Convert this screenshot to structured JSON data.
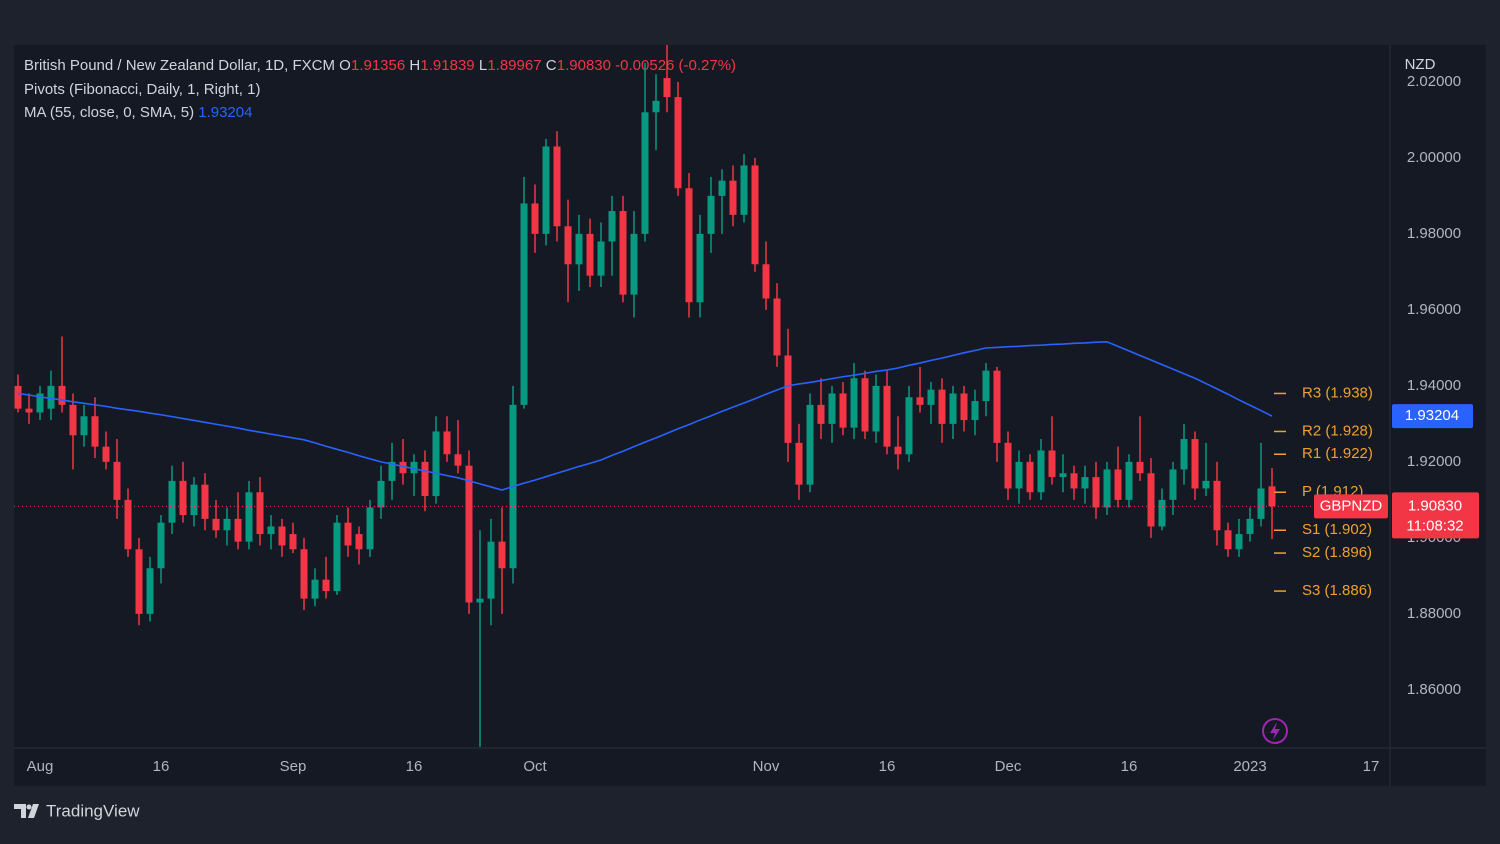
{
  "chart_data": {
    "type": "candlestick",
    "header": {
      "fields": [
        {
          "key": "O",
          "value": "1.91356"
        },
        {
          "key": "H",
          "value": "1.91839"
        },
        {
          "key": "L",
          "value": "1.89967"
        },
        {
          "key": "C",
          "value": "1.90830"
        }
      ],
      "change": "-0.00526 (-0.27%)"
    },
    "pivots_title": "Pivots (Fibonacci, Daily, 1, Right, 1)",
    "y_axis_label": "NZD",
    "symbol": "GBPNZD",
    "countdown": "11:08:32",
    "brand": "TradingView",
    "ylim": [
      1.8447,
      2.0297
    ],
    "yticks": [
      {
        "value": 1.86,
        "label": "1.86000"
      },
      {
        "value": 1.88,
        "label": "1.88000"
      },
      {
        "value": 1.9,
        "label": "1.90000"
      },
      {
        "value": 1.92,
        "label": "1.92000"
      },
      {
        "value": 1.94,
        "label": "1.94000"
      },
      {
        "value": 1.96,
        "label": "1.96000"
      },
      {
        "value": 1.98,
        "label": "1.98000"
      },
      {
        "value": 2.0,
        "label": "2.00000"
      },
      {
        "value": 2.02,
        "label": "2.02000"
      }
    ],
    "grid": false,
    "pivot_color": "#f0a030",
    "pivots": [
      {
        "value": 1.938,
        "label": "R3 (1.938)"
      },
      {
        "value": 1.928,
        "label": "R2 (1.928)"
      },
      {
        "value": 1.922,
        "label": "R1 (1.922)"
      },
      {
        "value": 1.912,
        "label": "P (1.912)"
      },
      {
        "value": 1.902,
        "label": "S1 (1.902)"
      },
      {
        "value": 1.896,
        "label": "S2 (1.896)"
      },
      {
        "value": 1.886,
        "label": "S3 (1.886)"
      }
    ],
    "categories": [
      null,
      null,
      "Aug",
      null,
      null,
      null,
      null,
      null,
      null,
      null,
      null,
      null,
      null,
      "16",
      null,
      null,
      null,
      null,
      null,
      null,
      null,
      null,
      null,
      null,
      null,
      "Sep",
      null,
      null,
      null,
      null,
      null,
      null,
      null,
      null,
      null,
      null,
      "16",
      null,
      null,
      null,
      null,
      null,
      null,
      null,
      null,
      null,
      null,
      "Oct",
      null,
      null,
      null,
      null,
      null,
      null,
      null,
      null,
      null,
      null,
      null,
      null,
      null,
      null,
      null,
      null,
      null,
      null,
      null,
      null,
      "Nov",
      null,
      null,
      null,
      null,
      null,
      null,
      null,
      null,
      null,
      null,
      "16",
      null,
      null,
      null,
      null,
      null,
      null,
      null,
      null,
      null,
      null,
      "Dec",
      null,
      null,
      null,
      null,
      null,
      null,
      null,
      null,
      null,
      null,
      "16",
      null,
      null,
      null,
      null,
      null,
      null,
      null,
      null,
      null,
      null,
      "2023",
      null,
      null,
      null,
      null,
      null,
      null,
      null,
      null,
      null,
      null,
      "17"
    ],
    "series": [
      {
        "name": "British Pound / New Zealand Dollar, 1D, FXCM",
        "type": "candlestick",
        "up_color": "#089981",
        "down_color": "#f23645",
        "value_label": "1.90830",
        "values": [
          [
            1.94,
            1.943,
            1.933,
            1.934
          ],
          [
            1.934,
            1.938,
            1.93,
            1.933
          ],
          [
            1.933,
            1.94,
            1.931,
            1.938
          ],
          [
            1.934,
            1.944,
            1.931,
            1.94
          ],
          [
            1.94,
            1.953,
            1.933,
            1.935
          ],
          [
            1.935,
            1.938,
            1.918,
            1.927
          ],
          [
            1.927,
            1.935,
            1.924,
            1.932
          ],
          [
            1.932,
            1.937,
            1.921,
            1.924
          ],
          [
            1.924,
            1.928,
            1.918,
            1.92
          ],
          [
            1.92,
            1.926,
            1.905,
            1.91
          ],
          [
            1.91,
            1.913,
            1.895,
            1.897
          ],
          [
            1.897,
            1.9,
            1.877,
            1.88
          ],
          [
            1.88,
            1.895,
            1.878,
            1.892
          ],
          [
            1.892,
            1.906,
            1.888,
            1.904
          ],
          [
            1.904,
            1.919,
            1.901,
            1.915
          ],
          [
            1.915,
            1.92,
            1.904,
            1.906
          ],
          [
            1.906,
            1.916,
            1.903,
            1.914
          ],
          [
            1.914,
            1.917,
            1.902,
            1.905
          ],
          [
            1.905,
            1.91,
            1.9,
            1.902
          ],
          [
            1.902,
            1.908,
            1.898,
            1.905
          ],
          [
            1.905,
            1.912,
            1.897,
            1.899
          ],
          [
            1.899,
            1.915,
            1.897,
            1.912
          ],
          [
            1.912,
            1.916,
            1.898,
            1.901
          ],
          [
            1.901,
            1.906,
            1.897,
            1.903
          ],
          [
            1.903,
            1.905,
            1.895,
            1.898
          ],
          [
            1.901,
            1.904,
            1.896,
            1.897
          ],
          [
            1.897,
            1.9,
            1.881,
            1.884
          ],
          [
            1.884,
            1.892,
            1.882,
            1.889
          ],
          [
            1.889,
            1.895,
            1.884,
            1.886
          ],
          [
            1.886,
            1.906,
            1.885,
            1.904
          ],
          [
            1.904,
            1.908,
            1.895,
            1.898
          ],
          [
            1.901,
            1.903,
            1.893,
            1.897
          ],
          [
            1.897,
            1.91,
            1.895,
            1.908
          ],
          [
            1.908,
            1.919,
            1.905,
            1.915
          ],
          [
            1.915,
            1.925,
            1.91,
            1.92
          ],
          [
            1.92,
            1.926,
            1.914,
            1.917
          ],
          [
            1.917,
            1.922,
            1.911,
            1.92
          ],
          [
            1.92,
            1.923,
            1.907,
            1.911
          ],
          [
            1.911,
            1.932,
            1.909,
            1.928
          ],
          [
            1.928,
            1.932,
            1.92,
            1.922
          ],
          [
            1.922,
            1.931,
            1.917,
            1.919
          ],
          [
            1.919,
            1.923,
            1.88,
            1.883
          ],
          [
            1.883,
            1.902,
            1.845,
            1.884
          ],
          [
            1.884,
            1.905,
            1.877,
            1.899
          ],
          [
            1.899,
            1.908,
            1.88,
            1.892
          ],
          [
            1.892,
            1.94,
            1.888,
            1.935
          ],
          [
            1.935,
            1.995,
            1.934,
            1.988
          ],
          [
            1.988,
            1.993,
            1.975,
            1.98
          ],
          [
            1.98,
            2.005,
            1.977,
            2.003
          ],
          [
            2.003,
            2.007,
            1.978,
            1.982
          ],
          [
            1.982,
            1.989,
            1.962,
            1.972
          ],
          [
            1.972,
            1.985,
            1.965,
            1.98
          ],
          [
            1.98,
            1.984,
            1.966,
            1.969
          ],
          [
            1.969,
            1.983,
            1.966,
            1.978
          ],
          [
            1.978,
            1.99,
            1.969,
            1.986
          ],
          [
            1.986,
            1.99,
            1.962,
            1.964
          ],
          [
            1.964,
            1.986,
            1.958,
            1.98
          ],
          [
            1.98,
            2.025,
            1.978,
            2.012
          ],
          [
            2.012,
            2.022,
            2.002,
            2.015
          ],
          [
            2.021,
            2.03,
            2.012,
            2.016
          ],
          [
            2.016,
            2.02,
            1.99,
            1.992
          ],
          [
            1.992,
            1.996,
            1.958,
            1.962
          ],
          [
            1.962,
            1.985,
            1.958,
            1.98
          ],
          [
            1.98,
            1.995,
            1.975,
            1.99
          ],
          [
            1.99,
            1.997,
            1.98,
            1.994
          ],
          [
            1.994,
            1.998,
            1.982,
            1.985
          ],
          [
            1.985,
            2.001,
            1.983,
            1.998
          ],
          [
            1.998,
            2.0,
            1.97,
            1.972
          ],
          [
            1.972,
            1.978,
            1.96,
            1.963
          ],
          [
            1.963,
            1.967,
            1.945,
            1.948
          ],
          [
            1.948,
            1.955,
            1.92,
            1.925
          ],
          [
            1.925,
            1.93,
            1.91,
            1.914
          ],
          [
            1.914,
            1.938,
            1.912,
            1.935
          ],
          [
            1.935,
            1.942,
            1.926,
            1.93
          ],
          [
            1.93,
            1.94,
            1.925,
            1.938
          ],
          [
            1.938,
            1.941,
            1.927,
            1.929
          ],
          [
            1.929,
            1.946,
            1.926,
            1.942
          ],
          [
            1.942,
            1.944,
            1.926,
            1.928
          ],
          [
            1.928,
            1.943,
            1.925,
            1.94
          ],
          [
            1.94,
            1.944,
            1.922,
            1.924
          ],
          [
            1.924,
            1.932,
            1.918,
            1.922
          ],
          [
            1.922,
            1.94,
            1.92,
            1.937
          ],
          [
            1.937,
            1.945,
            1.933,
            1.935
          ],
          [
            1.935,
            1.941,
            1.93,
            1.939
          ],
          [
            1.939,
            1.942,
            1.925,
            1.93
          ],
          [
            1.93,
            1.94,
            1.926,
            1.938
          ],
          [
            1.938,
            1.94,
            1.928,
            1.931
          ],
          [
            1.931,
            1.939,
            1.927,
            1.936
          ],
          [
            1.936,
            1.946,
            1.932,
            1.944
          ],
          [
            1.944,
            1.945,
            1.92,
            1.925
          ],
          [
            1.925,
            1.928,
            1.91,
            1.913
          ],
          [
            1.913,
            1.923,
            1.909,
            1.92
          ],
          [
            1.92,
            1.922,
            1.91,
            1.912
          ],
          [
            1.912,
            1.926,
            1.91,
            1.923
          ],
          [
            1.923,
            1.932,
            1.914,
            1.916
          ],
          [
            1.916,
            1.922,
            1.912,
            1.917
          ],
          [
            1.917,
            1.919,
            1.91,
            1.913
          ],
          [
            1.913,
            1.919,
            1.909,
            1.916
          ],
          [
            1.916,
            1.92,
            1.905,
            1.908
          ],
          [
            1.908,
            1.92,
            1.906,
            1.918
          ],
          [
            1.918,
            1.924,
            1.908,
            1.91
          ],
          [
            1.91,
            1.922,
            1.908,
            1.92
          ],
          [
            1.92,
            1.932,
            1.915,
            1.917
          ],
          [
            1.917,
            1.921,
            1.9,
            1.903
          ],
          [
            1.903,
            1.913,
            1.902,
            1.91
          ],
          [
            1.91,
            1.92,
            1.906,
            1.918
          ],
          [
            1.918,
            1.93,
            1.914,
            1.926
          ],
          [
            1.926,
            1.928,
            1.91,
            1.913
          ],
          [
            1.913,
            1.925,
            1.911,
            1.915
          ],
          [
            1.915,
            1.92,
            1.898,
            1.902
          ],
          [
            1.902,
            1.904,
            1.895,
            1.897
          ],
          [
            1.897,
            1.905,
            1.895,
            1.901
          ],
          [
            1.901,
            1.908,
            1.899,
            1.905
          ],
          [
            1.905,
            1.925,
            1.903,
            1.913
          ],
          [
            1.91356,
            1.91839,
            1.89967,
            1.9083
          ],
          null,
          null,
          null,
          null,
          null,
          null,
          null,
          null,
          null
        ]
      },
      {
        "name": "MA (55, close, 0, SMA, 5)",
        "type": "line",
        "color": "#2962ff",
        "value_label": "1.93204",
        "values": [
          1.938,
          1.9376,
          1.9371,
          1.9367,
          1.9363,
          1.9358,
          1.9354,
          1.935,
          1.9346,
          1.9341,
          1.9337,
          1.9333,
          1.9328,
          1.9324,
          1.9319,
          1.9314,
          1.9309,
          1.9304,
          1.9299,
          1.9294,
          1.9289,
          1.9283,
          1.9278,
          1.9273,
          1.9268,
          1.9263,
          1.9258,
          1.925,
          1.9241,
          1.9233,
          1.9225,
          1.9216,
          1.9208,
          1.92,
          1.9194,
          1.9188,
          1.9182,
          1.9176,
          1.917,
          1.9164,
          1.9158,
          1.915,
          1.9142,
          1.9134,
          1.9126,
          1.9135,
          1.9144,
          1.9152,
          1.9161,
          1.917,
          1.9179,
          1.9188,
          1.9196,
          1.9205,
          1.9217,
          1.9228,
          1.924,
          1.9252,
          1.9263,
          1.9275,
          1.9287,
          1.9298,
          1.931,
          1.9321,
          1.9333,
          1.9344,
          1.9355,
          1.9366,
          1.9378,
          1.9389,
          1.94,
          1.9405,
          1.9409,
          1.9414,
          1.9419,
          1.9424,
          1.9428,
          1.9433,
          1.9438,
          1.9442,
          1.9447,
          1.9454,
          1.946,
          1.9467,
          1.9473,
          1.948,
          1.9487,
          1.9493,
          1.95,
          1.9501,
          1.9503,
          1.9504,
          1.9506,
          1.9507,
          1.9509,
          1.951,
          1.9512,
          1.9513,
          1.9515,
          1.9516,
          1.9504,
          1.9492,
          1.948,
          1.9468,
          1.9456,
          1.9444,
          1.9432,
          1.942,
          1.9406,
          1.9392,
          1.9378,
          1.9363,
          1.9349,
          1.9335,
          1.93204,
          null,
          null,
          null,
          null,
          null,
          null,
          null,
          null,
          null
        ]
      }
    ]
  }
}
